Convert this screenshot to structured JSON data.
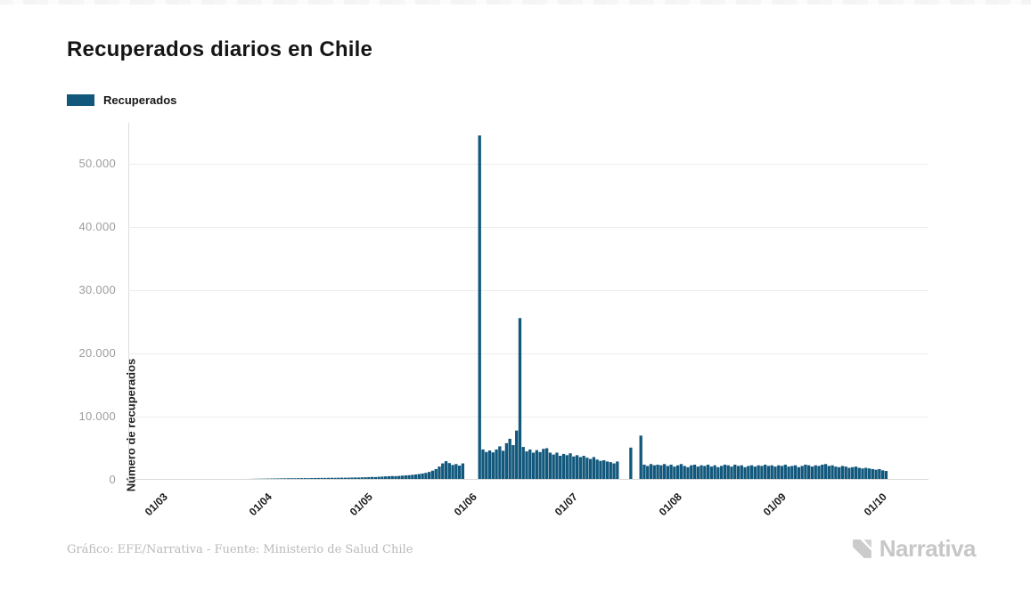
{
  "header": {
    "title": "Recuperados diarios en Chile"
  },
  "legend": {
    "label": "Recuperados",
    "swatch_color": "#12587c"
  },
  "footer": {
    "credit": "Gráfico: EFE/Narrativa - Fuente: Ministerio de Salud Chile",
    "brand": "Narrativa",
    "brand_color": "#c7c7c7"
  },
  "chart_data": {
    "type": "bar",
    "title": "Recuperados diarios en Chile",
    "series_name": "Recuperados",
    "bar_color": "#12587c",
    "xlabel": "",
    "ylabel": "Número de recuperados",
    "grid": "horizontal",
    "legend_position": "top-left",
    "ylim": [
      0,
      56500
    ],
    "ytick_values": [
      0,
      10000,
      20000,
      30000,
      40000,
      50000
    ],
    "ytick_labels": [
      "0",
      "10.000",
      "20.000",
      "30.000",
      "40.000",
      "50.000"
    ],
    "xtick_labels": [
      "01/03",
      "01/04",
      "01/05",
      "01/06",
      "01/07",
      "01/08",
      "01/09",
      "01/10"
    ],
    "xtick_day_index": [
      0,
      31,
      61,
      92,
      122,
      153,
      184,
      214
    ],
    "start_date": "01/03/2020",
    "notable_points": {
      "max_spike": 54500,
      "second_spike": 25600,
      "late_july_spikes": [
        5100,
        7000
      ]
    },
    "values": [
      0,
      0,
      0,
      0,
      3,
      6,
      8,
      10,
      12,
      15,
      18,
      21,
      25,
      28,
      32,
      36,
      40,
      45,
      50,
      55,
      60,
      66,
      72,
      80,
      88,
      95,
      105,
      115,
      125,
      135,
      145,
      155,
      165,
      172,
      180,
      190,
      198,
      205,
      215,
      222,
      230,
      238,
      245,
      252,
      248,
      258,
      265,
      272,
      268,
      280,
      290,
      295,
      305,
      298,
      312,
      320,
      315,
      328,
      338,
      332,
      345,
      360,
      375,
      365,
      390,
      410,
      430,
      455,
      440,
      480,
      510,
      540,
      570,
      600,
      580,
      620,
      660,
      700,
      740,
      790,
      850,
      920,
      1000,
      1100,
      1250,
      1450,
      1700,
      2100,
      2600,
      2950,
      2650,
      2350,
      2500,
      2250,
      2600,
      0,
      0,
      0,
      0,
      54500,
      4800,
      4400,
      4650,
      4350,
      4800,
      5300,
      4600,
      5800,
      6500,
      5500,
      7800,
      25600,
      5200,
      4500,
      4800,
      4300,
      4700,
      4400,
      4900,
      5000,
      4300,
      4000,
      4300,
      3800,
      4100,
      3900,
      4200,
      3700,
      3900,
      3600,
      3800,
      3500,
      3300,
      3600,
      3200,
      3000,
      3100,
      2900,
      2800,
      2600,
      2900,
      0,
      0,
      0,
      5100,
      0,
      0,
      7000,
      2400,
      2200,
      2500,
      2300,
      2400,
      2300,
      2500,
      2200,
      2400,
      2100,
      2300,
      2500,
      2200,
      2000,
      2300,
      2400,
      2100,
      2300,
      2200,
      2400,
      2100,
      2300,
      2000,
      2200,
      2400,
      2300,
      2100,
      2400,
      2200,
      2300,
      2000,
      2200,
      2300,
      2100,
      2300,
      2200,
      2400,
      2200,
      2300,
      2100,
      2300,
      2200,
      2400,
      2100,
      2200,
      2300,
      2000,
      2200,
      2400,
      2300,
      2100,
      2300,
      2200,
      2400,
      2500,
      2200,
      2300,
      2100,
      2000,
      2200,
      2100,
      1900,
      2000,
      2100,
      1900,
      1800,
      1900,
      1800,
      1700,
      1600,
      1700,
      1500,
      1400
    ]
  }
}
